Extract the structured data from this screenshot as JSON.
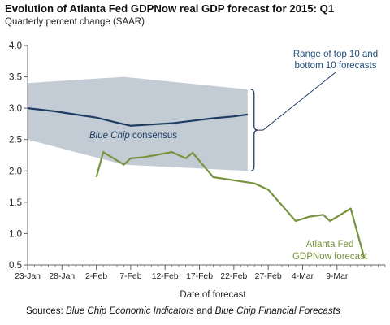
{
  "chart_data": {
    "type": "line",
    "title": "Evolution of Atlanta Fed GDPNow real GDP forecast for 2015: Q1",
    "subtitle": "Quarterly percent change (SAAR)",
    "xlabel": "Date of forecast",
    "ylabel": "",
    "ylim": [
      0.5,
      4.0
    ],
    "xlim": [
      "2015-01-23",
      "2015-03-16"
    ],
    "yticks": [
      "4.0",
      "3.5",
      "3.0",
      "2.5",
      "2.0",
      "1.5",
      "1.0",
      "0.5"
    ],
    "xticks": [
      "23-Jan",
      "28-Jan",
      "2-Feb",
      "7-Feb",
      "12-Feb",
      "17-Feb",
      "22-Feb",
      "27-Feb",
      "4-Mar",
      "9-Mar"
    ],
    "xtick_dates": [
      "2015-01-23",
      "2015-01-28",
      "2015-02-02",
      "2015-02-07",
      "2015-02-12",
      "2015-02-17",
      "2015-02-22",
      "2015-02-27",
      "2015-03-04",
      "2015-03-09"
    ],
    "grid": false,
    "range_band": {
      "label_lines": [
        "Range of top 10 and",
        "bottom 10 forecasts"
      ],
      "color": "#c3ccd4",
      "x": [
        "2015-01-23",
        "2015-02-06",
        "2015-02-24"
      ],
      "upper": [
        3.4,
        3.5,
        3.3
      ],
      "lower": [
        2.5,
        2.1,
        2.0
      ]
    },
    "series": [
      {
        "name_italic": "Blue Chip",
        "name_rest": " consensus",
        "color": "#1f3d64",
        "x": [
          "2015-01-23",
          "2015-01-27",
          "2015-01-30",
          "2015-02-02",
          "2015-02-05",
          "2015-02-07",
          "2015-02-10",
          "2015-02-13",
          "2015-02-16",
          "2015-02-19",
          "2015-02-22",
          "2015-02-24"
        ],
        "y": [
          3.0,
          2.95,
          2.9,
          2.85,
          2.77,
          2.72,
          2.74,
          2.76,
          2.8,
          2.84,
          2.87,
          2.9
        ]
      },
      {
        "name_lines": [
          "Atlanta Fed",
          "GDPNow forecast"
        ],
        "color": "#77933c",
        "x": [
          "2015-02-02",
          "2015-02-03",
          "2015-02-06",
          "2015-02-07",
          "2015-02-09",
          "2015-02-13",
          "2015-02-15",
          "2015-02-16",
          "2015-02-19",
          "2015-02-25",
          "2015-02-27",
          "2015-03-03",
          "2015-03-05",
          "2015-03-07",
          "2015-03-08",
          "2015-03-11",
          "2015-03-13"
        ],
        "y": [
          1.9,
          2.3,
          2.1,
          2.2,
          2.22,
          2.3,
          2.2,
          2.29,
          1.9,
          1.8,
          1.7,
          1.2,
          1.27,
          1.3,
          1.2,
          1.4,
          0.6
        ]
      }
    ]
  },
  "source": {
    "prefix": "Sources:  ",
    "part1": "Blue Chip Economic Indicators",
    "middle": " and ",
    "part2": "Blue Chip Financial Forecasts"
  }
}
